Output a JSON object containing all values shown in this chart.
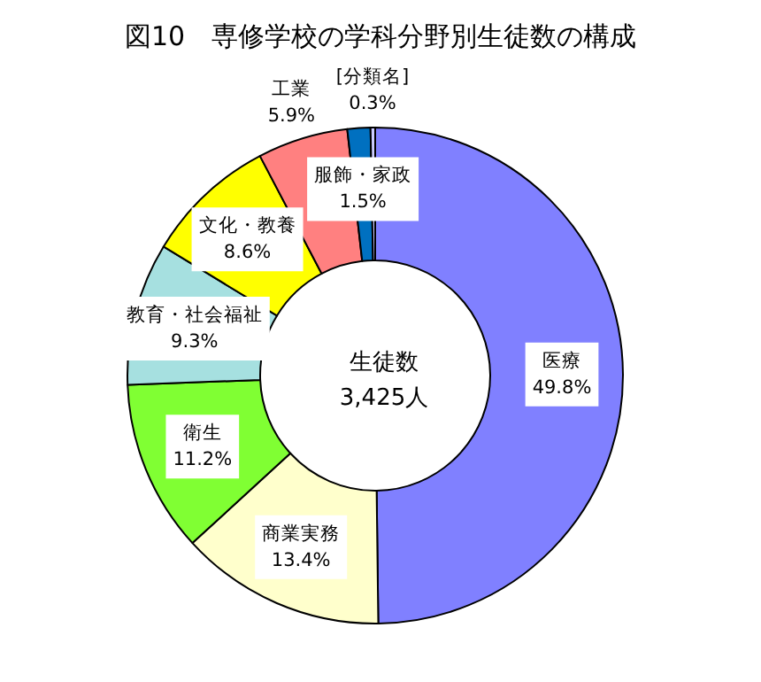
{
  "chart_data": {
    "type": "donut",
    "title": "図10　専修学校の学科分野別生徒数の構成",
    "categories": [
      "医療",
      "商業実務",
      "衛生",
      "教育・社会福祉",
      "文化・教養",
      "工業",
      "服飾・家政",
      "[分類名]"
    ],
    "values": [
      49.8,
      13.4,
      11.2,
      9.3,
      8.6,
      5.9,
      1.5,
      0.3
    ],
    "colors": [
      "#8080ff",
      "#ffffcc",
      "#80ff33",
      "#a6e0e0",
      "#ffff00",
      "#ff8080",
      "#0070c0",
      "#ccccff"
    ],
    "annotations": [
      "生徒数\n3,425人"
    ],
    "value_labels": [
      "49.8%",
      "13.4%",
      "11.2%",
      "9.3%",
      "8.6%",
      "5.9%",
      "1.5%",
      "0.3%"
    ],
    "legend": false
  }
}
